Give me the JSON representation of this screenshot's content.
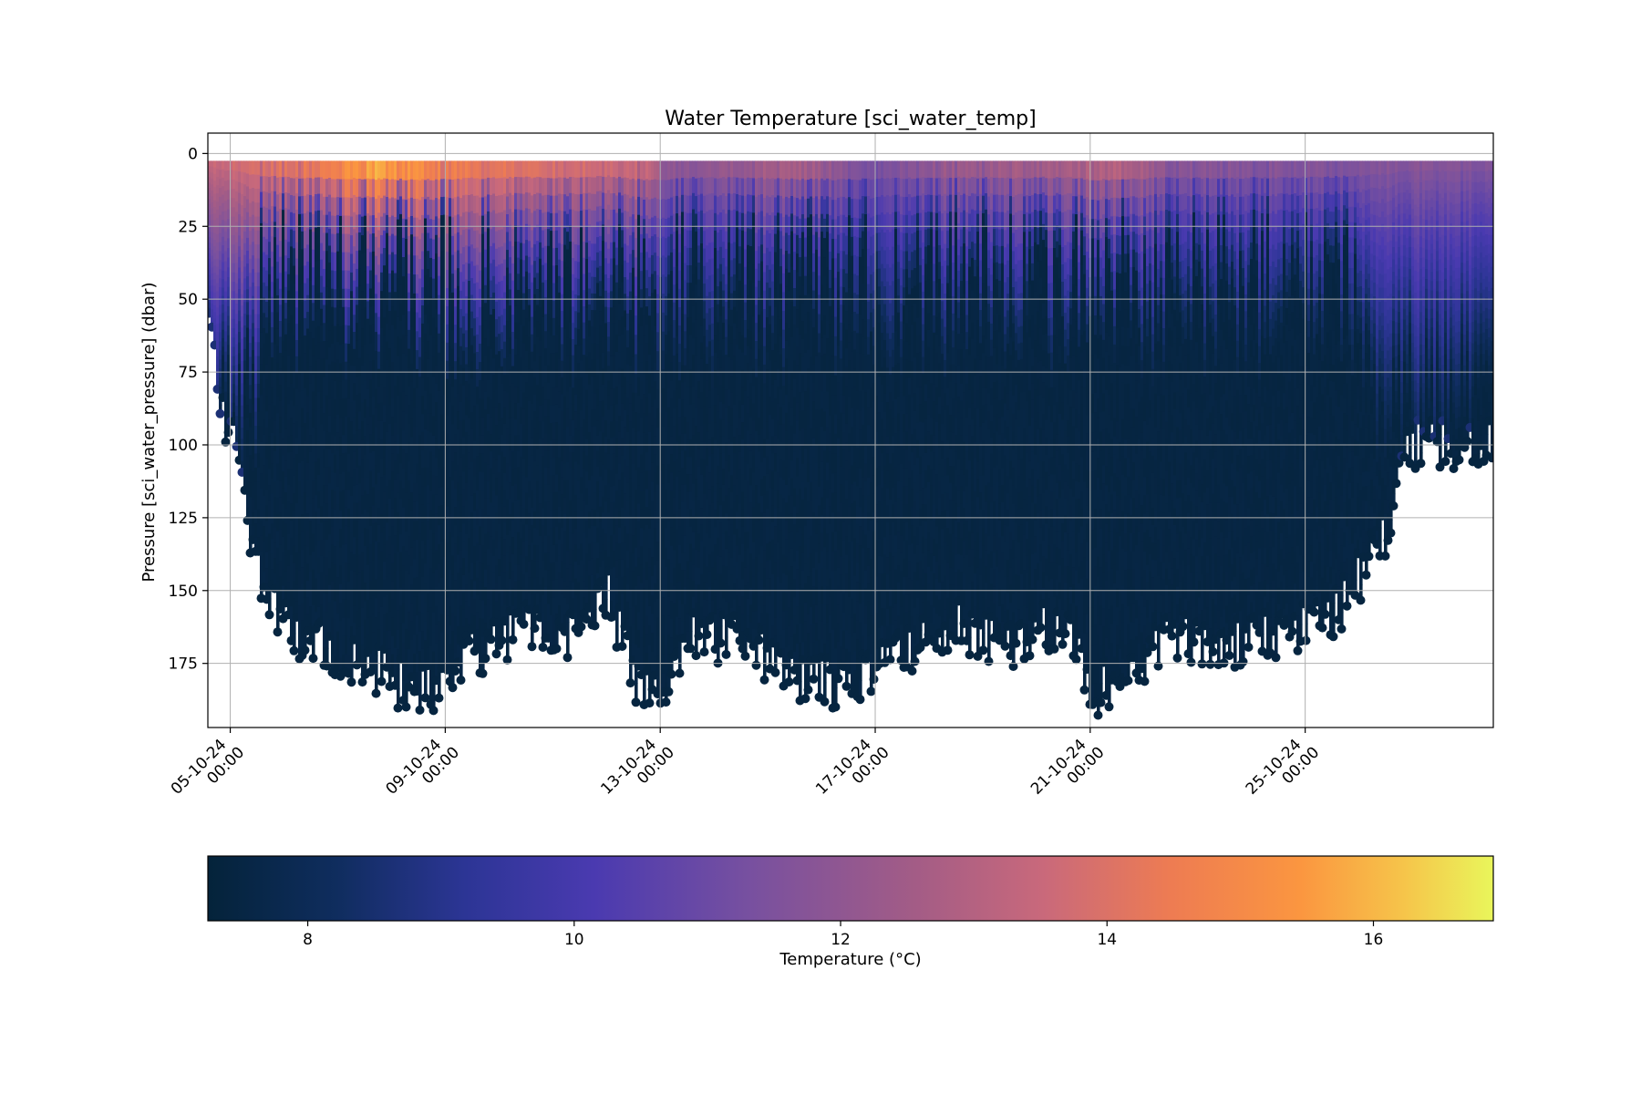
{
  "chart_data": {
    "type": "scatter",
    "title": "Water Temperature [sci_water_temp]",
    "xlabel": "",
    "ylabel": "Pressure [sci_water_pressure] (dbar)",
    "x_ticks": [
      {
        "date": "2024-10-05",
        "line1": "05-10-24",
        "line2": "00:00"
      },
      {
        "date": "2024-10-09",
        "line1": "09-10-24",
        "line2": "00:00"
      },
      {
        "date": "2024-10-13",
        "line1": "13-10-24",
        "line2": "00:00"
      },
      {
        "date": "2024-10-17",
        "line1": "17-10-24",
        "line2": "00:00"
      },
      {
        "date": "2024-10-21",
        "line1": "21-10-24",
        "line2": "00:00"
      },
      {
        "date": "2024-10-25",
        "line1": "25-10-24",
        "line2": "00:00"
      }
    ],
    "xlim": [
      "2024-10-04T14:00",
      "2024-10-28T12:00"
    ],
    "y_ticks": [
      0,
      25,
      50,
      75,
      100,
      125,
      150,
      175
    ],
    "ylim": [
      197,
      -7
    ],
    "y_inverted": true,
    "grid": true,
    "colorbar": {
      "label": "Temperature (°C)",
      "ticks": [
        8,
        10,
        12,
        14,
        16
      ],
      "range": [
        7.25,
        16.9
      ],
      "colormap": "thermal",
      "orientation": "horizontal",
      "placement": "bottom"
    },
    "depth_profile": {
      "description_days": "day offset from 2024-10-04T14:00",
      "max_depth_points": [
        {
          "date": "2024-10-04T14:00",
          "max_pressure": 55
        },
        {
          "date": "2024-10-04T18:00",
          "max_pressure": 85
        },
        {
          "date": "2024-10-05T03:00",
          "max_pressure": 100
        },
        {
          "date": "2024-10-05T10:00",
          "max_pressure": 140
        },
        {
          "date": "2024-10-05T20:00",
          "max_pressure": 158
        },
        {
          "date": "2024-10-06T12:00",
          "max_pressure": 168
        },
        {
          "date": "2024-10-07T12:00",
          "max_pressure": 175
        },
        {
          "date": "2024-10-08T12:00",
          "max_pressure": 186
        },
        {
          "date": "2024-10-09T12:00",
          "max_pressure": 172
        },
        {
          "date": "2024-10-10T12:00",
          "max_pressure": 162
        },
        {
          "date": "2024-10-11T12:00",
          "max_pressure": 165
        },
        {
          "date": "2024-10-12T00:00",
          "max_pressure": 150
        },
        {
          "date": "2024-10-12T12:00",
          "max_pressure": 182
        },
        {
          "date": "2024-10-13T00:00",
          "max_pressure": 185
        },
        {
          "date": "2024-10-13T12:00",
          "max_pressure": 165
        },
        {
          "date": "2024-10-14T12:00",
          "max_pressure": 168
        },
        {
          "date": "2024-10-15T12:00",
          "max_pressure": 180
        },
        {
          "date": "2024-10-16T12:00",
          "max_pressure": 182
        },
        {
          "date": "2024-10-17T12:00",
          "max_pressure": 170
        },
        {
          "date": "2024-10-18T12:00",
          "max_pressure": 162
        },
        {
          "date": "2024-10-19T12:00",
          "max_pressure": 168
        },
        {
          "date": "2024-10-20T12:00",
          "max_pressure": 160
        },
        {
          "date": "2024-10-21T00:00",
          "max_pressure": 185
        },
        {
          "date": "2024-10-21T12:00",
          "max_pressure": 180
        },
        {
          "date": "2024-10-22T12:00",
          "max_pressure": 165
        },
        {
          "date": "2024-10-23T12:00",
          "max_pressure": 168
        },
        {
          "date": "2024-10-24T12:00",
          "max_pressure": 165
        },
        {
          "date": "2024-10-25T12:00",
          "max_pressure": 160
        },
        {
          "date": "2024-10-26T00:00",
          "max_pressure": 145
        },
        {
          "date": "2024-10-26T12:00",
          "max_pressure": 130
        },
        {
          "date": "2024-10-26T20:00",
          "max_pressure": 100
        },
        {
          "date": "2024-10-28T12:00",
          "max_pressure": 100
        }
      ],
      "surface_temp_points": [
        {
          "date": "2024-10-04T14:00",
          "temp": 13.5
        },
        {
          "date": "2024-10-06T12:00",
          "temp": 15.0
        },
        {
          "date": "2024-10-07T18:00",
          "temp": 16.5
        },
        {
          "date": "2024-10-09T12:00",
          "temp": 14.8
        },
        {
          "date": "2024-10-11T12:00",
          "temp": 14.2
        },
        {
          "date": "2024-10-12T20:00",
          "temp": 13.8
        },
        {
          "date": "2024-10-13T00:00",
          "temp": 12.2
        },
        {
          "date": "2024-10-14T12:00",
          "temp": 12.6
        },
        {
          "date": "2024-10-15T12:00",
          "temp": 13.3
        },
        {
          "date": "2024-10-17T00:00",
          "temp": 11.6
        },
        {
          "date": "2024-10-18T12:00",
          "temp": 12.7
        },
        {
          "date": "2024-10-20T12:00",
          "temp": 13.1
        },
        {
          "date": "2024-10-21T12:00",
          "temp": 13.6
        },
        {
          "date": "2024-10-22T12:00",
          "temp": 12.2
        },
        {
          "date": "2024-10-24T12:00",
          "temp": 12.0
        },
        {
          "date": "2024-10-28T12:00",
          "temp": 11.7
        }
      ],
      "deep_temp": 7.4,
      "thermocline_min_pressure": 20
    }
  }
}
